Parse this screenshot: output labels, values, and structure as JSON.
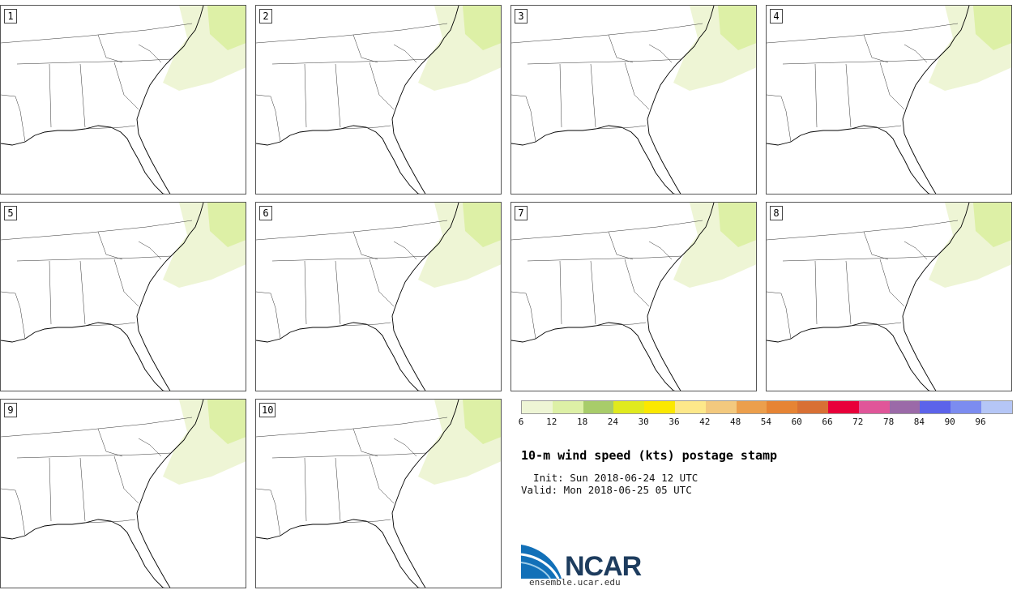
{
  "panels": [
    {
      "label": "1"
    },
    {
      "label": "2"
    },
    {
      "label": "3"
    },
    {
      "label": "4"
    },
    {
      "label": "5"
    },
    {
      "label": "6"
    },
    {
      "label": "7"
    },
    {
      "label": "8"
    },
    {
      "label": "9"
    },
    {
      "label": "10"
    }
  ],
  "legend": {
    "colors": [
      "#eef5d5",
      "#ddf0a6",
      "#a8cc6a",
      "#e0ea1e",
      "#fbe800",
      "#fde88a",
      "#f3c97e",
      "#ec9f4c",
      "#e68434",
      "#d87034",
      "#e8003a",
      "#e05699",
      "#9b6aa8",
      "#5c63ea",
      "#7c8cf0",
      "#b5c6f6"
    ],
    "ticks": [
      "6",
      "12",
      "18",
      "24",
      "30",
      "36",
      "42",
      "48",
      "54",
      "60",
      "66",
      "72",
      "78",
      "84",
      "90",
      "96"
    ]
  },
  "title": "10-m wind speed (kts) postage stamp",
  "init": "  Init: Sun 2018-06-24 12 UTC",
  "valid": "Valid: Mon 2018-06-25 05 UTC",
  "logo": {
    "text": "NCAR",
    "url": "ensemble.ucar.edu",
    "icon": "ncar-arc-logo"
  }
}
